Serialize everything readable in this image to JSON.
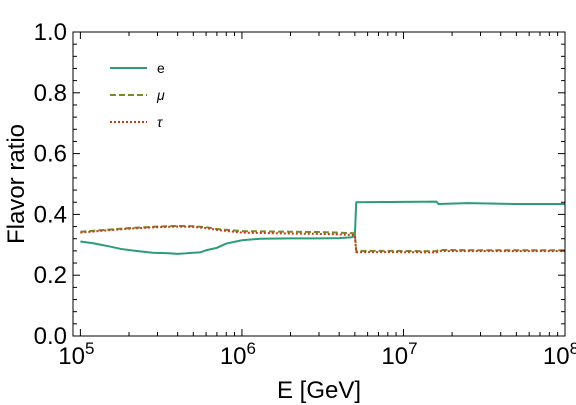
{
  "chart_data": {
    "type": "line",
    "title": "",
    "xlabel": "E [GeV]",
    "ylabel": "Flavor ratio",
    "xscale": "log",
    "xlim": [
      90000,
      100000000
    ],
    "ylim": [
      0,
      1
    ],
    "x_ticks": [
      {
        "value": 100000,
        "base": "10",
        "exp": "5"
      },
      {
        "value": 1000000,
        "base": "10",
        "exp": "6"
      },
      {
        "value": 10000000,
        "base": "10",
        "exp": "7"
      },
      {
        "value": 100000000,
        "base": "10",
        "exp": "8"
      }
    ],
    "y_ticks": [
      "0.0",
      "0.2",
      "0.4",
      "0.6",
      "0.8",
      "1.0"
    ],
    "grid": false,
    "legend_position": "top-left",
    "series": [
      {
        "name": "e",
        "color": "#2a9d78",
        "style": "solid",
        "points": [
          [
            100000,
            0.311
          ],
          [
            120000,
            0.305
          ],
          [
            150000,
            0.295
          ],
          [
            180000,
            0.286
          ],
          [
            220000,
            0.28
          ],
          [
            280000,
            0.274
          ],
          [
            350000,
            0.272
          ],
          [
            400000,
            0.27
          ],
          [
            450000,
            0.272
          ],
          [
            500000,
            0.274
          ],
          [
            550000,
            0.275
          ],
          [
            600000,
            0.282
          ],
          [
            700000,
            0.29
          ],
          [
            800000,
            0.304
          ],
          [
            1000000,
            0.315
          ],
          [
            1300000,
            0.32
          ],
          [
            2000000,
            0.321
          ],
          [
            3000000,
            0.321
          ],
          [
            4000000,
            0.322
          ],
          [
            4800000,
            0.325
          ],
          [
            5000000,
            0.33
          ],
          [
            5100000,
            0.44
          ],
          [
            8000000,
            0.441
          ],
          [
            16000000,
            0.442
          ],
          [
            16500000,
            0.434
          ],
          [
            25000000,
            0.437
          ],
          [
            50000000,
            0.434
          ],
          [
            70000000,
            0.434
          ],
          [
            100000000,
            0.434
          ]
        ]
      },
      {
        "name": "μ",
        "color": "#7a8a2a",
        "style": "dashed",
        "points": [
          [
            100000,
            0.343
          ],
          [
            150000,
            0.35
          ],
          [
            200000,
            0.355
          ],
          [
            300000,
            0.36
          ],
          [
            400000,
            0.362
          ],
          [
            500000,
            0.361
          ],
          [
            600000,
            0.358
          ],
          [
            700000,
            0.352
          ],
          [
            1000000,
            0.345
          ],
          [
            2000000,
            0.343
          ],
          [
            3000000,
            0.342
          ],
          [
            4000000,
            0.34
          ],
          [
            5000000,
            0.338
          ],
          [
            5100000,
            0.28
          ],
          [
            8000000,
            0.28
          ],
          [
            16000000,
            0.279
          ],
          [
            16500000,
            0.283
          ],
          [
            30000000,
            0.282
          ],
          [
            100000000,
            0.282
          ]
        ]
      },
      {
        "name": "τ",
        "color": "#cc3a1a",
        "style": "dotted",
        "points": [
          [
            100000,
            0.34
          ],
          [
            150000,
            0.348
          ],
          [
            200000,
            0.353
          ],
          [
            300000,
            0.358
          ],
          [
            400000,
            0.36
          ],
          [
            500000,
            0.359
          ],
          [
            600000,
            0.355
          ],
          [
            700000,
            0.349
          ],
          [
            1000000,
            0.34
          ],
          [
            2000000,
            0.337
          ],
          [
            3000000,
            0.336
          ],
          [
            4000000,
            0.334
          ],
          [
            5000000,
            0.332
          ],
          [
            5100000,
            0.276
          ],
          [
            8000000,
            0.276
          ],
          [
            16000000,
            0.275
          ],
          [
            16500000,
            0.279
          ],
          [
            30000000,
            0.279
          ],
          [
            100000000,
            0.279
          ]
        ]
      }
    ]
  }
}
